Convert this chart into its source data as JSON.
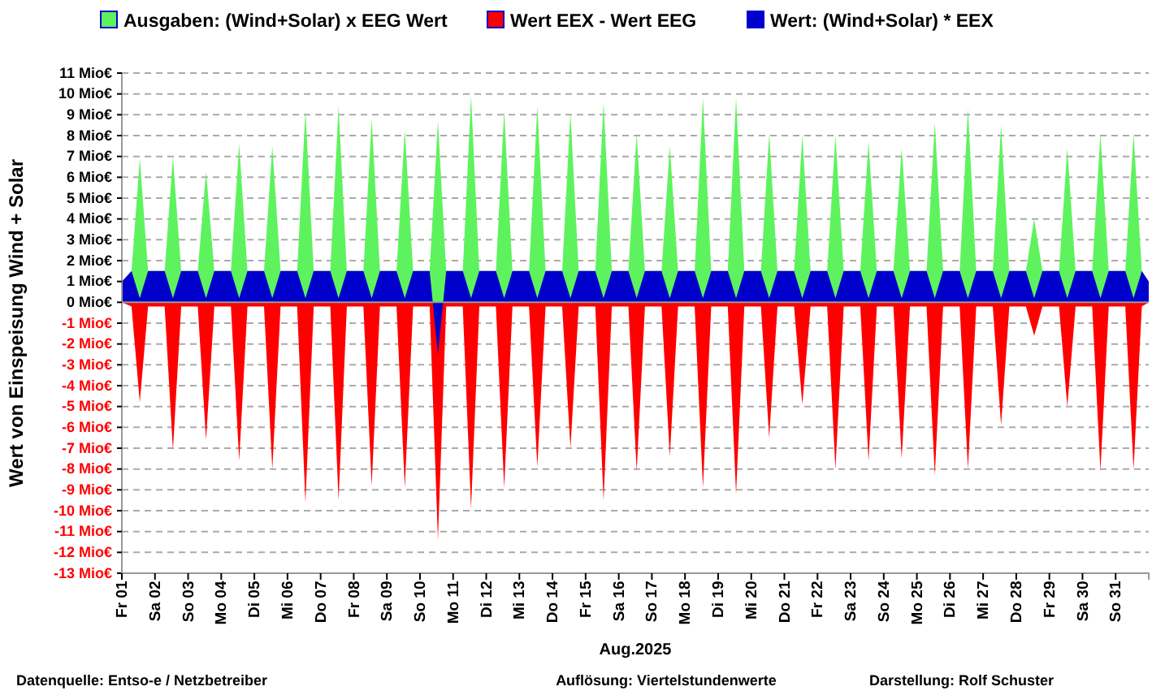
{
  "chart_data": {
    "type": "area",
    "xlabel": "Aug.2025",
    "ylabel": "Wert von Einspeisung Wind + Solar",
    "x": [
      "2025-08-01T00:00",
      "2025-08-01T07:00",
      "2025-08-01T13:00",
      "2025-08-01T19:00",
      "2025-08-02T07:00",
      "2025-08-02T13:00",
      "2025-08-02T19:00",
      "2025-08-03T07:00",
      "2025-08-03T13:00",
      "2025-08-03T19:00",
      "2025-08-04T07:00",
      "2025-08-04T13:00",
      "2025-08-04T19:00",
      "2025-08-05T07:00",
      "2025-08-05T13:00",
      "2025-08-05T19:00",
      "2025-08-06T07:00",
      "2025-08-06T13:00",
      "2025-08-06T19:00",
      "2025-08-07T07:00",
      "2025-08-07T13:00",
      "2025-08-07T19:00",
      "2025-08-08T07:00",
      "2025-08-08T13:00",
      "2025-08-08T19:00",
      "2025-08-09T07:00",
      "2025-08-09T13:00",
      "2025-08-09T19:00",
      "2025-08-10T07:00",
      "2025-08-10T13:00",
      "2025-08-10T19:00",
      "2025-08-11T07:00",
      "2025-08-11T13:00",
      "2025-08-11T19:00",
      "2025-08-12T07:00",
      "2025-08-12T13:00",
      "2025-08-12T19:00",
      "2025-08-13T07:00",
      "2025-08-13T13:00",
      "2025-08-13T19:00",
      "2025-08-14T07:00",
      "2025-08-14T13:00",
      "2025-08-14T19:00",
      "2025-08-15T07:00",
      "2025-08-15T13:00",
      "2025-08-15T19:00",
      "2025-08-16T07:00",
      "2025-08-16T13:00",
      "2025-08-16T19:00",
      "2025-08-17T07:00",
      "2025-08-17T13:00",
      "2025-08-17T19:00",
      "2025-08-18T07:00",
      "2025-08-18T13:00",
      "2025-08-18T19:00",
      "2025-08-19T07:00",
      "2025-08-19T13:00",
      "2025-08-19T19:00",
      "2025-08-20T07:00",
      "2025-08-20T13:00",
      "2025-08-20T19:00",
      "2025-08-21T07:00",
      "2025-08-21T13:00",
      "2025-08-21T19:00",
      "2025-08-22T07:00",
      "2025-08-22T13:00",
      "2025-08-22T19:00",
      "2025-08-23T07:00",
      "2025-08-23T13:00",
      "2025-08-23T19:00",
      "2025-08-24T07:00",
      "2025-08-24T13:00",
      "2025-08-24T19:00",
      "2025-08-25T07:00",
      "2025-08-25T13:00",
      "2025-08-25T19:00",
      "2025-08-26T07:00",
      "2025-08-26T13:00",
      "2025-08-26T19:00",
      "2025-08-27T07:00",
      "2025-08-27T13:00",
      "2025-08-27T19:00",
      "2025-08-28T07:00",
      "2025-08-28T13:00",
      "2025-08-28T19:00",
      "2025-08-29T07:00",
      "2025-08-29T13:00",
      "2025-08-29T19:00",
      "2025-08-30T07:00",
      "2025-08-30T13:00",
      "2025-08-30T19:00",
      "2025-08-31T07:00",
      "2025-08-31T13:00",
      "2025-08-31T19:00",
      "2025-09-01T00:00"
    ],
    "series": [
      {
        "name": "Ausgaben: (Wind+Solar) x EEG Wert",
        "color": "#5ef35e",
        "values": [
          0.5,
          1.5,
          6.9,
          1.5,
          1.5,
          7.0,
          1.5,
          1.5,
          6.3,
          1.5,
          1.5,
          7.6,
          1.5,
          1.5,
          7.5,
          1.5,
          1.5,
          9.2,
          1.5,
          1.5,
          9.4,
          1.5,
          1.5,
          8.8,
          1.5,
          1.5,
          8.3,
          1.5,
          1.5,
          8.7,
          1.5,
          1.5,
          9.9,
          1.5,
          1.5,
          9.2,
          1.5,
          1.5,
          9.4,
          1.5,
          1.5,
          9.1,
          1.5,
          1.5,
          9.6,
          1.5,
          1.5,
          8.1,
          1.5,
          1.5,
          7.5,
          1.5,
          1.5,
          9.8,
          1.5,
          1.5,
          9.8,
          1.5,
          1.5,
          8.1,
          1.5,
          1.5,
          8.0,
          1.5,
          1.5,
          8.0,
          1.5,
          1.5,
          7.7,
          1.5,
          1.5,
          7.4,
          1.5,
          1.5,
          8.6,
          1.5,
          1.5,
          9.3,
          1.5,
          1.5,
          8.5,
          1.5,
          1.5,
          4.0,
          1.5,
          1.5,
          7.4,
          1.5,
          1.5,
          8.1,
          1.5,
          1.5,
          8.1,
          1.5,
          0.5
        ]
      },
      {
        "name": "Wert EEX - Wert EEG",
        "color": "#ff0000",
        "values": [
          0,
          -0.2,
          -4.8,
          -0.2,
          -0.2,
          -7.1,
          -0.2,
          -0.2,
          -6.6,
          -0.2,
          -0.2,
          -7.6,
          -0.2,
          -0.2,
          -8.0,
          -0.2,
          -0.2,
          -9.6,
          -0.2,
          -0.2,
          -9.5,
          -0.2,
          -0.2,
          -8.8,
          -0.2,
          -0.2,
          -8.9,
          -0.2,
          -0.2,
          -11.4,
          -0.2,
          -0.2,
          -9.9,
          -0.2,
          -0.2,
          -8.9,
          -0.2,
          -0.2,
          -7.9,
          -0.2,
          -0.2,
          -7.0,
          -0.2,
          -0.2,
          -9.5,
          -0.2,
          -0.2,
          -8.1,
          -0.2,
          -0.2,
          -7.4,
          -0.2,
          -0.2,
          -8.9,
          -0.2,
          -0.2,
          -9.2,
          -0.2,
          -0.2,
          -6.5,
          -0.2,
          -0.2,
          -4.9,
          -0.2,
          -0.2,
          -8.0,
          -0.2,
          -0.2,
          -7.6,
          -0.2,
          -0.2,
          -7.5,
          -0.2,
          -0.2,
          -8.3,
          -0.2,
          -0.2,
          -8.0,
          -0.2,
          -0.2,
          -5.9,
          -0.2,
          -0.2,
          -1.6,
          -0.2,
          -0.2,
          -5.0,
          -0.2,
          -0.2,
          -8.1,
          -0.2,
          -0.2,
          -8.0,
          -0.2,
          0
        ]
      },
      {
        "name": "Wert: (Wind+Solar) * EEX",
        "color": "#0000cc",
        "values": [
          1.0,
          1.5,
          0.2,
          1.5,
          1.5,
          0.2,
          1.5,
          1.5,
          0.2,
          1.5,
          1.5,
          0.2,
          1.5,
          1.5,
          0.2,
          1.5,
          1.5,
          0.2,
          1.5,
          1.5,
          0.2,
          1.5,
          1.5,
          0.2,
          1.5,
          1.5,
          0.2,
          1.5,
          1.5,
          -2.5,
          1.5,
          1.5,
          0.2,
          1.5,
          1.5,
          0.2,
          1.5,
          1.5,
          0.2,
          1.5,
          1.5,
          0.2,
          1.5,
          1.5,
          0.2,
          1.5,
          1.5,
          0.2,
          1.5,
          1.5,
          0.2,
          1.5,
          1.5,
          0.2,
          1.5,
          1.5,
          0.2,
          1.5,
          1.5,
          0.2,
          1.5,
          1.5,
          0.2,
          1.5,
          1.5,
          0.2,
          1.5,
          1.5,
          0.2,
          1.5,
          1.5,
          0.2,
          1.5,
          1.5,
          0.2,
          1.5,
          1.5,
          0.2,
          1.5,
          1.5,
          0.2,
          1.5,
          1.5,
          0.2,
          1.5,
          1.5,
          0.2,
          1.5,
          1.5,
          0.2,
          1.5,
          1.5,
          0.2,
          1.5,
          1.0
        ]
      }
    ],
    "xlim": [
      "2025-08-01T00:00",
      "2025-09-01T00:00"
    ],
    "xticks": [
      {
        "value": "2025-08-01T00:00",
        "label": "Fr 01"
      },
      {
        "value": "2025-08-02T00:00",
        "label": "Sa 02"
      },
      {
        "value": "2025-08-03T00:00",
        "label": "So 03"
      },
      {
        "value": "2025-08-04T00:00",
        "label": "Mo 04"
      },
      {
        "value": "2025-08-05T00:00",
        "label": "Di 05"
      },
      {
        "value": "2025-08-06T00:00",
        "label": "Mi 06"
      },
      {
        "value": "2025-08-07T00:00",
        "label": "Do 07"
      },
      {
        "value": "2025-08-08T00:00",
        "label": "Fr 08"
      },
      {
        "value": "2025-08-09T00:00",
        "label": "Sa 09"
      },
      {
        "value": "2025-08-10T00:00",
        "label": "So 10"
      },
      {
        "value": "2025-08-11T00:00",
        "label": "Mo 11"
      },
      {
        "value": "2025-08-12T00:00",
        "label": "Di 12"
      },
      {
        "value": "2025-08-13T00:00",
        "label": "Mi 13"
      },
      {
        "value": "2025-08-14T00:00",
        "label": "Do 14"
      },
      {
        "value": "2025-08-15T00:00",
        "label": "Fr 15"
      },
      {
        "value": "2025-08-16T00:00",
        "label": "Sa 16"
      },
      {
        "value": "2025-08-17T00:00",
        "label": "So 17"
      },
      {
        "value": "2025-08-18T00:00",
        "label": "Mo 18"
      },
      {
        "value": "2025-08-19T00:00",
        "label": "Di 19"
      },
      {
        "value": "2025-08-20T00:00",
        "label": "Mi 20"
      },
      {
        "value": "2025-08-21T00:00",
        "label": "Do 21"
      },
      {
        "value": "2025-08-22T00:00",
        "label": "Fr 22"
      },
      {
        "value": "2025-08-23T00:00",
        "label": "Sa 23"
      },
      {
        "value": "2025-08-24T00:00",
        "label": "So 24"
      },
      {
        "value": "2025-08-25T00:00",
        "label": "Mo 25"
      },
      {
        "value": "2025-08-26T00:00",
        "label": "Di 26"
      },
      {
        "value": "2025-08-27T00:00",
        "label": "Mi 27"
      },
      {
        "value": "2025-08-28T00:00",
        "label": "Do 28"
      },
      {
        "value": "2025-08-29T00:00",
        "label": "Fr 29"
      },
      {
        "value": "2025-08-30T00:00",
        "label": "Sa 30"
      },
      {
        "value": "2025-08-31T00:00",
        "label": "So 31"
      }
    ],
    "ylim": [
      -13,
      11
    ],
    "yticks": [
      {
        "value": 11,
        "label": "11 Mio€"
      },
      {
        "value": 10,
        "label": "10 Mio€"
      },
      {
        "value": 9,
        "label": "9 Mio€"
      },
      {
        "value": 8,
        "label": "8 Mio€"
      },
      {
        "value": 7,
        "label": "7 Mio€"
      },
      {
        "value": 6,
        "label": "6 Mio€"
      },
      {
        "value": 5,
        "label": "5 Mio€"
      },
      {
        "value": 4,
        "label": "4 Mio€"
      },
      {
        "value": 3,
        "label": "3 Mio€"
      },
      {
        "value": 2,
        "label": "2 Mio€"
      },
      {
        "value": 1,
        "label": "1 Mio€"
      },
      {
        "value": 0,
        "label": "0 Mio€"
      },
      {
        "value": -1,
        "label": "-1 Mio€"
      },
      {
        "value": -2,
        "label": "-2 Mio€"
      },
      {
        "value": -3,
        "label": "-3 Mio€"
      },
      {
        "value": -4,
        "label": "-4 Mio€"
      },
      {
        "value": -5,
        "label": "-5 Mio€"
      },
      {
        "value": -6,
        "label": "-6 Mio€"
      },
      {
        "value": -7,
        "label": "-7 Mio€"
      },
      {
        "value": -8,
        "label": "-8 Mio€"
      },
      {
        "value": -9,
        "label": "-9 Mio€"
      },
      {
        "value": -10,
        "label": "-10 Mio€"
      },
      {
        "value": -11,
        "label": "-11 Mio€"
      },
      {
        "value": -12,
        "label": "-12 Mio€"
      },
      {
        "value": -13,
        "label": "-13 Mio€"
      }
    ],
    "grid": "y",
    "legend": "top",
    "annotations": [
      "Datenquelle:  Entso-e  / Netzbetreiber",
      "Auflösung: Viertelstundenwerte",
      "Darstellung:  Rolf Schuster"
    ]
  }
}
